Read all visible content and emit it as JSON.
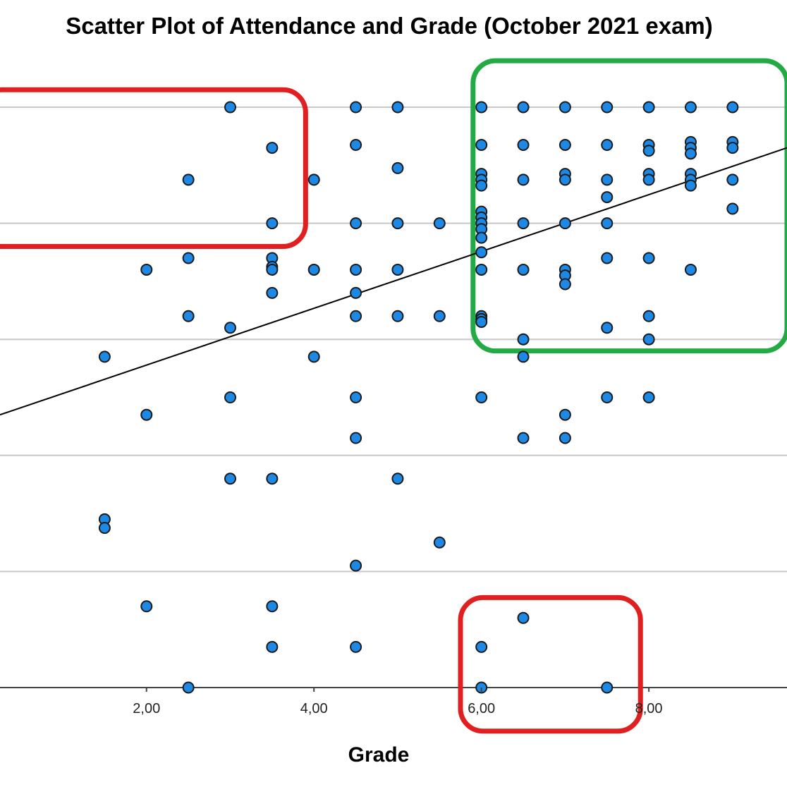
{
  "chart_data": {
    "type": "scatter",
    "title": "Scatter Plot of Attendance and Grade (October 2021 exam)",
    "xlabel": "Grade",
    "ylabel": "",
    "x_ticks": [
      {
        "value": 2,
        "label": "2,00"
      },
      {
        "value": 4,
        "label": "4,00"
      },
      {
        "value": 6,
        "label": "6,00"
      },
      {
        "value": 8,
        "label": "8,00"
      }
    ],
    "xlim": [
      0.25,
      9.65
    ],
    "ylim": [
      0,
      100
    ],
    "y_gridlines": [
      0,
      20,
      40,
      60,
      80,
      100
    ],
    "grid": true,
    "colors": {
      "point_fill": "#1e88e5",
      "point_stroke": "#1b1b1b",
      "fit_line": "#000000",
      "highlight_good": "#22aa44",
      "highlight_bad": "#e02020",
      "gridline": "#c8c8c8"
    },
    "fit_line": {
      "x": [
        0.25,
        9.65
      ],
      "y": [
        47,
        93
      ]
    },
    "highlights": [
      {
        "color": "red",
        "x": [
          0.0,
          3.9
        ],
        "y": [
          76,
          103
        ]
      },
      {
        "color": "green",
        "x": [
          5.9,
          9.65
        ],
        "y": [
          58,
          108
        ]
      },
      {
        "color": "red",
        "x": [
          5.75,
          7.9
        ],
        "y": [
          -7.5,
          15.5
        ]
      }
    ],
    "points": [
      [
        3,
        100
      ],
      [
        4.5,
        100
      ],
      [
        5,
        100
      ],
      [
        6,
        100
      ],
      [
        6.5,
        100
      ],
      [
        7,
        100
      ],
      [
        7.5,
        100
      ],
      [
        8,
        100
      ],
      [
        8.5,
        100
      ],
      [
        9,
        100
      ],
      [
        3.5,
        93
      ],
      [
        4.5,
        93.5
      ],
      [
        6,
        93.5
      ],
      [
        6.5,
        93.5
      ],
      [
        7,
        93.5
      ],
      [
        7.5,
        93.5
      ],
      [
        8,
        93.5
      ],
      [
        8,
        92.5
      ],
      [
        8.5,
        94
      ],
      [
        8.5,
        93
      ],
      [
        8.5,
        92
      ],
      [
        9,
        94
      ],
      [
        9,
        93
      ],
      [
        2.5,
        87.5
      ],
      [
        4,
        87.5
      ],
      [
        5,
        89.5
      ],
      [
        6,
        88.5
      ],
      [
        6,
        87.5
      ],
      [
        6,
        86.5
      ],
      [
        6.5,
        87.5
      ],
      [
        7,
        88.5
      ],
      [
        7,
        87.5
      ],
      [
        7.5,
        87.5
      ],
      [
        8,
        88.5
      ],
      [
        8,
        87.5
      ],
      [
        8.5,
        88.5
      ],
      [
        8.5,
        87.5
      ],
      [
        8.5,
        86.5
      ],
      [
        9,
        87.5
      ],
      [
        7.5,
        84.5
      ],
      [
        9,
        82.5
      ],
      [
        3.5,
        80
      ],
      [
        4.5,
        80
      ],
      [
        5,
        80
      ],
      [
        5.5,
        80
      ],
      [
        6,
        82
      ],
      [
        6,
        81
      ],
      [
        6,
        80
      ],
      [
        6,
        79
      ],
      [
        6.5,
        80
      ],
      [
        7,
        80
      ],
      [
        7.5,
        80
      ],
      [
        6,
        77.5
      ],
      [
        6,
        75
      ],
      [
        2.5,
        74
      ],
      [
        3.5,
        74
      ],
      [
        7.5,
        74
      ],
      [
        8,
        74
      ],
      [
        2,
        72
      ],
      [
        3.5,
        72.5
      ],
      [
        3.5,
        72
      ],
      [
        4,
        72
      ],
      [
        4.5,
        72
      ],
      [
        5,
        72
      ],
      [
        6,
        72
      ],
      [
        6.5,
        72
      ],
      [
        7,
        72
      ],
      [
        8.5,
        72
      ],
      [
        7,
        71
      ],
      [
        7,
        69.5
      ],
      [
        3.5,
        68
      ],
      [
        4.5,
        68
      ],
      [
        2.5,
        64
      ],
      [
        4.5,
        64
      ],
      [
        5,
        64
      ],
      [
        5.5,
        64
      ],
      [
        6,
        64
      ],
      [
        6,
        63.5
      ],
      [
        6,
        63
      ],
      [
        8,
        64
      ],
      [
        3,
        62
      ],
      [
        7.5,
        62
      ],
      [
        6.5,
        60
      ],
      [
        8,
        60
      ],
      [
        1.5,
        57
      ],
      [
        4,
        57
      ],
      [
        6.5,
        57
      ],
      [
        3,
        50
      ],
      [
        4.5,
        50
      ],
      [
        6,
        50
      ],
      [
        7.5,
        50
      ],
      [
        8,
        50
      ],
      [
        2,
        47
      ],
      [
        7,
        47
      ],
      [
        4.5,
        43
      ],
      [
        6.5,
        43
      ],
      [
        7,
        43
      ],
      [
        3,
        36
      ],
      [
        3.5,
        36
      ],
      [
        5,
        36
      ],
      [
        1.5,
        29
      ],
      [
        1.5,
        27.5
      ],
      [
        5.5,
        25
      ],
      [
        4.5,
        21
      ],
      [
        2,
        14
      ],
      [
        3.5,
        14
      ],
      [
        6.5,
        12
      ],
      [
        3.5,
        7
      ],
      [
        4.5,
        7
      ],
      [
        6,
        7
      ],
      [
        2.5,
        0
      ],
      [
        6,
        0
      ],
      [
        7.5,
        0
      ]
    ]
  }
}
